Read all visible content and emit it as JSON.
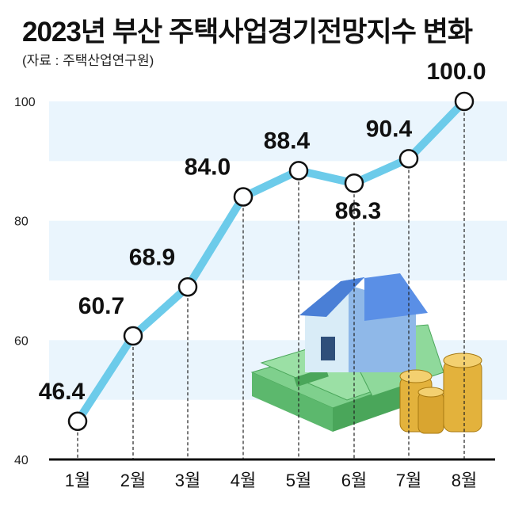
{
  "header": {
    "title": "2023년 부산 주택사업경기전망지수 변화",
    "source": "(자료 : 주택산업연구원)"
  },
  "chart_data": {
    "type": "line",
    "title": "2023년 부산 주택사업경기전망지수 변화",
    "categories": [
      "1월",
      "2월",
      "3월",
      "4월",
      "5월",
      "6월",
      "7월",
      "8월"
    ],
    "values": [
      46.4,
      60.7,
      68.9,
      84.0,
      88.4,
      86.3,
      90.4,
      100.0
    ],
    "value_labels": [
      "46.4",
      "60.7",
      "68.9",
      "84.0",
      "88.4",
      "86.3",
      "90.4",
      "100.0"
    ],
    "yticks": [
      "40",
      "60",
      "80",
      "100"
    ],
    "ylim": [
      40,
      100
    ],
    "xlabel": "",
    "ylabel": "",
    "colors": {
      "line": "#6ccbea",
      "band": "#eaf5fd",
      "axis": "#111111",
      "marker_fill": "#ffffff",
      "marker_stroke": "#111111"
    }
  }
}
